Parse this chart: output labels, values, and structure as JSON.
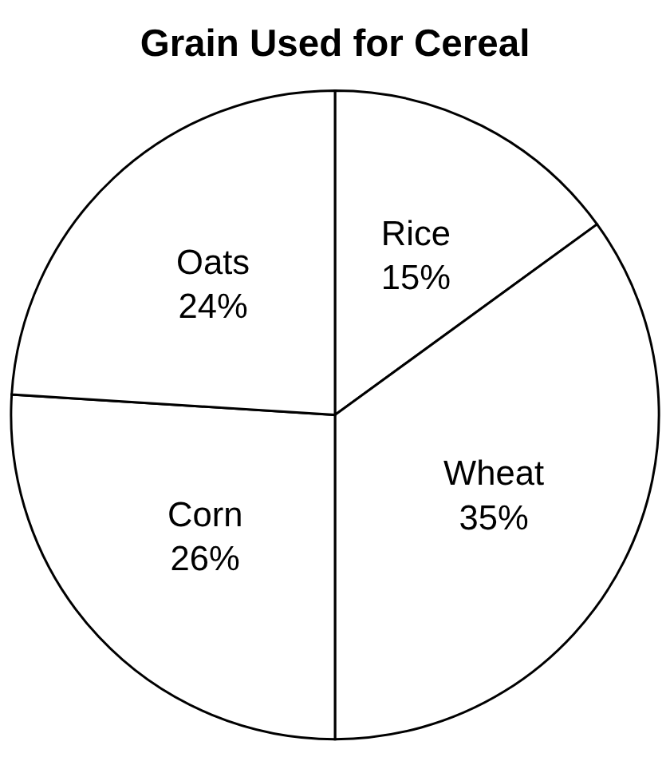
{
  "chart_data": {
    "type": "pie",
    "title": "Grain Used for Cereal",
    "categories": [
      "Rice",
      "Wheat",
      "Corn",
      "Oats"
    ],
    "values": [
      15,
      35,
      26,
      24
    ],
    "value_labels": [
      "15%",
      "35%",
      "26%",
      "24%"
    ],
    "colors": [
      "#ffffff",
      "#ffffff",
      "#ffffff",
      "#ffffff"
    ]
  }
}
